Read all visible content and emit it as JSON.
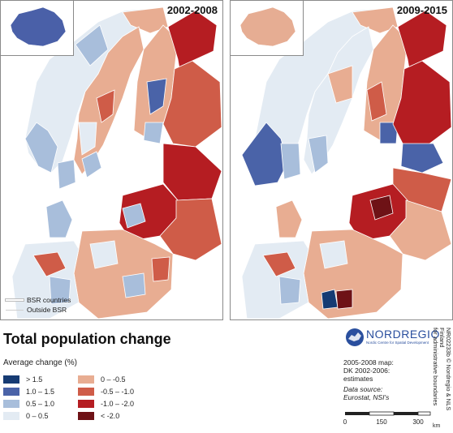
{
  "maps": [
    {
      "period": "2002-2008",
      "iceland_color": "#4a60a8"
    },
    {
      "period": "2009-2015",
      "iceland_color": "#e6ad93"
    }
  ],
  "bsr_legend": {
    "bsr_countries": "BSR countries",
    "outside_bsr": "Outside BSR"
  },
  "title": "Total population change",
  "legend": {
    "title": "Average change (%)",
    "classes": [
      {
        "label": "> 1.5",
        "color": "#163b73"
      },
      {
        "label": "1.0 – 1.5",
        "color": "#4a63a8"
      },
      {
        "label": "0.5 – 1.0",
        "color": "#a8bedb"
      },
      {
        "label": "0 – 0.5",
        "color": "#e3ebf3"
      },
      {
        "label": "0 – -0.5",
        "color": "#e8ad92"
      },
      {
        "label": "-0.5 – -1.0",
        "color": "#cf5c48"
      },
      {
        "label": "-1.0 – -2.0",
        "color": "#b51d22"
      },
      {
        "label": "< -2.0",
        "color": "#6e1216"
      }
    ]
  },
  "logo": {
    "name": "NORDREGIO",
    "subtitle": "Nordic Centre for Spatial Development"
  },
  "notes": {
    "line1": "2005-2008 map:",
    "line2": "DK 2002-2006:",
    "line3": "estimates",
    "source_label": "Data source:",
    "source_value": "Eurostat, NSI's"
  },
  "credits": {
    "line1": "NR02233b © Nordregio & NLS Finland",
    "line2": "for administrative boundaries"
  },
  "scalebar": {
    "ticks": [
      "0",
      "150",
      "300"
    ],
    "unit": "km"
  },
  "colors": {
    "outside": "#ffffff",
    "sea": "#ffffff",
    "border": "#ffffff",
    "frame": "#8a8a8a"
  }
}
